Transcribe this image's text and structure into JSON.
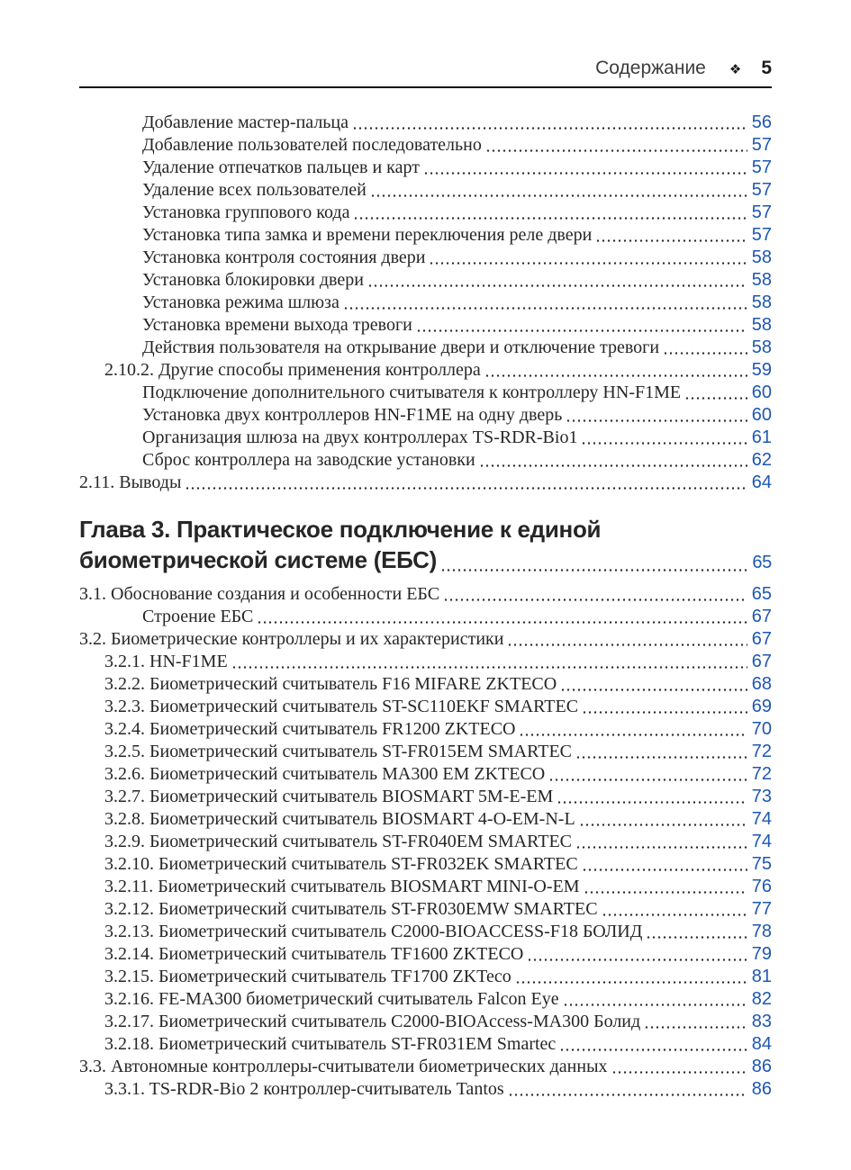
{
  "header": {
    "title": "Содержание",
    "separator_icon": "❖",
    "page_number": "5"
  },
  "colors": {
    "page_number_blue": "#1d57b5",
    "text": "#262626",
    "rule": "#141414"
  },
  "toc": {
    "entries": [
      {
        "text": "Добавление мастер-пальца",
        "page": "56",
        "indent": 2,
        "style": "item"
      },
      {
        "text": "Добавление пользователей последовательно",
        "page": "57",
        "indent": 2,
        "style": "item"
      },
      {
        "text": "Удаление отпечатков пальцев и карт",
        "page": "57",
        "indent": 2,
        "style": "item"
      },
      {
        "text": "Удаление всех пользователей",
        "page": "57",
        "indent": 2,
        "style": "item"
      },
      {
        "text": "Установка группового кода",
        "page": "57",
        "indent": 2,
        "style": "item"
      },
      {
        "text": "Установка типа замка и времени переключения реле двери",
        "page": "57",
        "indent": 2,
        "style": "item"
      },
      {
        "text": "Установка контроля состояния двери",
        "page": "58",
        "indent": 2,
        "style": "item"
      },
      {
        "text": "Установка блокировки двери",
        "page": "58",
        "indent": 2,
        "style": "item"
      },
      {
        "text": "Установка режима шлюза",
        "page": "58",
        "indent": 2,
        "style": "item"
      },
      {
        "text": "Установка времени выхода тревоги",
        "page": "58",
        "indent": 2,
        "style": "item"
      },
      {
        "text": "Действия пользователя на открывание двери и отключение тревоги",
        "page": "58",
        "indent": 2,
        "style": "item"
      },
      {
        "text": "2.10.2. Другие способы применения контроллера",
        "page": "59",
        "indent": 1,
        "style": "item"
      },
      {
        "text": "Подключение дополнительного считывателя к контроллеру HN-F1ME",
        "page": "60",
        "indent": 2,
        "style": "item"
      },
      {
        "text": "Установка двух контроллеров HN-F1ME на одну дверь",
        "page": "60",
        "indent": 2,
        "style": "item"
      },
      {
        "text": "Организация шлюза на двух контроллерах TS-RDR-Bio1",
        "page": "61",
        "indent": 2,
        "style": "item"
      },
      {
        "text": "Сброс контроллера на заводские установки",
        "page": "62",
        "indent": 2,
        "style": "item"
      },
      {
        "text": "2.11. Выводы",
        "page": "64",
        "indent": 0,
        "style": "item"
      },
      {
        "text": "Глава 3. Практическое подключение к единой",
        "page": null,
        "indent": 0,
        "style": "chapter",
        "space_before": 22
      },
      {
        "text": "биометрической системе (ЕБС)",
        "page": "65",
        "indent": 0,
        "style": "chapter"
      },
      {
        "text": "3.1. Обоснование создания и особенности ЕБС",
        "page": "65",
        "indent": 0,
        "style": "item",
        "space_before": 6
      },
      {
        "text": "Строение ЕБС",
        "page": "67",
        "indent": 2,
        "style": "item"
      },
      {
        "text": "3.2. Биометрические контроллеры и их характеристики",
        "page": "67",
        "indent": 0,
        "style": "item"
      },
      {
        "text": "3.2.1. HN-F1ME",
        "page": "67",
        "indent": 1,
        "style": "item"
      },
      {
        "text": "3.2.2. Биометрический считыватель F16 MIFARE ZKTECO",
        "page": "68",
        "indent": 1,
        "style": "item"
      },
      {
        "text": "3.2.3. Биометрический считыватель ST-SC110EKF SMARTEC",
        "page": "69",
        "indent": 1,
        "style": "item"
      },
      {
        "text": "3.2.4. Биометрический считыватель FR1200 ZKTECO",
        "page": "70",
        "indent": 1,
        "style": "item"
      },
      {
        "text": "3.2.5. Биометрический считыватель ST-FR015EM SMARTEC",
        "page": "72",
        "indent": 1,
        "style": "item"
      },
      {
        "text": "3.2.6. Биометрический считыватель MA300 EM ZKTECO",
        "page": "72",
        "indent": 1,
        "style": "item"
      },
      {
        "text": "3.2.7. Биометрический считыватель BIOSMART 5M-E-EM",
        "page": "73",
        "indent": 1,
        "style": "item"
      },
      {
        "text": "3.2.8. Биометрический считыватель BIOSMART 4-O-EM-N-L",
        "page": "74",
        "indent": 1,
        "style": "item"
      },
      {
        "text": "3.2.9. Биометрический считыватель ST-FR040EM SMARTEC",
        "page": "74",
        "indent": 1,
        "style": "item"
      },
      {
        "text": "3.2.10. Биометрический считыватель ST-FR032EK SMARTEC",
        "page": "75",
        "indent": 1,
        "style": "item"
      },
      {
        "text": "3.2.11. Биометрический считыватель BIOSMART MINI-O-EM",
        "page": "76",
        "indent": 1,
        "style": "item"
      },
      {
        "text": "3.2.12. Биометрический считыватель ST-FR030EMW SMARTEC",
        "page": "77",
        "indent": 1,
        "style": "item"
      },
      {
        "text": "3.2.13. Биометрический считыватель C2000-BIOACCESS-F18 БОЛИД",
        "page": "78",
        "indent": 1,
        "style": "item"
      },
      {
        "text": "3.2.14. Биометрический считыватель TF1600 ZKTECO",
        "page": "79",
        "indent": 1,
        "style": "item"
      },
      {
        "text": "3.2.15. Биометрический считыватель TF1700 ZKTeco",
        "page": "81",
        "indent": 1,
        "style": "item"
      },
      {
        "text": "3.2.16. FE-MA300 биометрический считыватель Falcon Eye",
        "page": "82",
        "indent": 1,
        "style": "item"
      },
      {
        "text": "3.2.17. Биометрический считыватель C2000-BIOAccess-MA300 Болид",
        "page": "83",
        "indent": 1,
        "style": "item"
      },
      {
        "text": "3.2.18. Биометрический считыватель ST-FR031EM Smartec",
        "page": "84",
        "indent": 1,
        "style": "item"
      },
      {
        "text": "3.3. Автономные контроллеры-считыватели биометрических данных",
        "page": "86",
        "indent": 0,
        "style": "item"
      },
      {
        "text": "3.3.1. TS-RDR-Bio 2 контроллер-считыватель Tantos",
        "page": "86",
        "indent": 1,
        "style": "item"
      }
    ]
  }
}
